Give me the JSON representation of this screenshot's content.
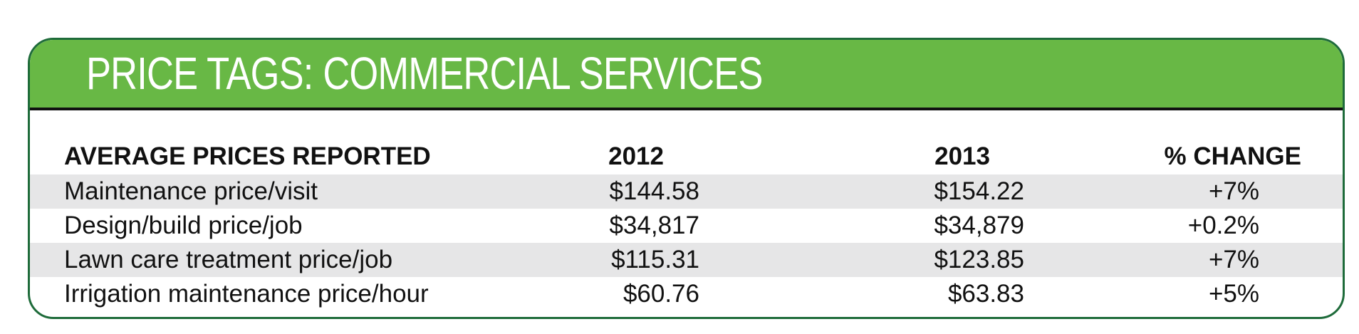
{
  "title": "PRICE TAGS: COMMERCIAL SERVICES",
  "colors": {
    "header_green": "#68b845",
    "border_green": "#1e6b3a",
    "row_shade": "#e6e6e7"
  },
  "chart_data": {
    "type": "table",
    "title": "PRICE TAGS: COMMERCIAL SERVICES",
    "columns": [
      "AVERAGE PRICES REPORTED",
      "2012",
      "2013",
      "% CHANGE"
    ],
    "rows": [
      [
        "Maintenance price/visit",
        "$144.58",
        "$154.22",
        "+7%"
      ],
      [
        "Design/build price/job",
        "$34,817",
        "$34,879",
        "+0.2%"
      ],
      [
        "Lawn care treatment price/job",
        "$115.31",
        "$123.85",
        "+7%"
      ],
      [
        "Irrigation maintenance price/hour",
        "$60.76",
        "$63.83",
        "+5%"
      ]
    ]
  }
}
